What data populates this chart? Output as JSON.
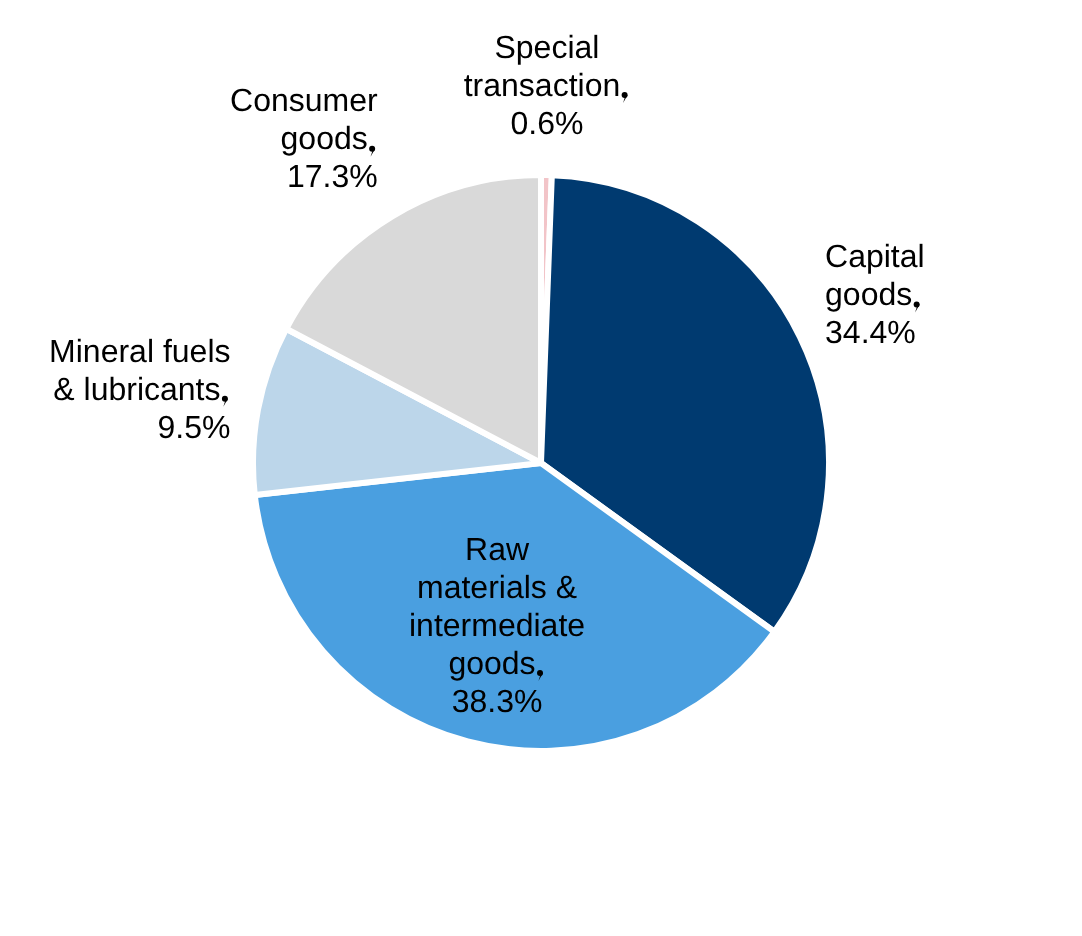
{
  "chart_data": {
    "type": "pie",
    "categories": [
      "Special transaction",
      "Capital goods",
      "Raw materials & intermediate goods",
      "Mineral fuels & lubricants",
      "Consumer goods"
    ],
    "values": [
      0.6,
      34.4,
      38.3,
      9.5,
      17.3
    ],
    "colors": [
      "#f2c4c8",
      "#003a70",
      "#4a9fe0",
      "#bcd6ea",
      "#d9d9d9"
    ],
    "value_labels": [
      "0.6%",
      "34.4%",
      "38.3%",
      "9.5%",
      "17.3%"
    ],
    "legend": false
  }
}
